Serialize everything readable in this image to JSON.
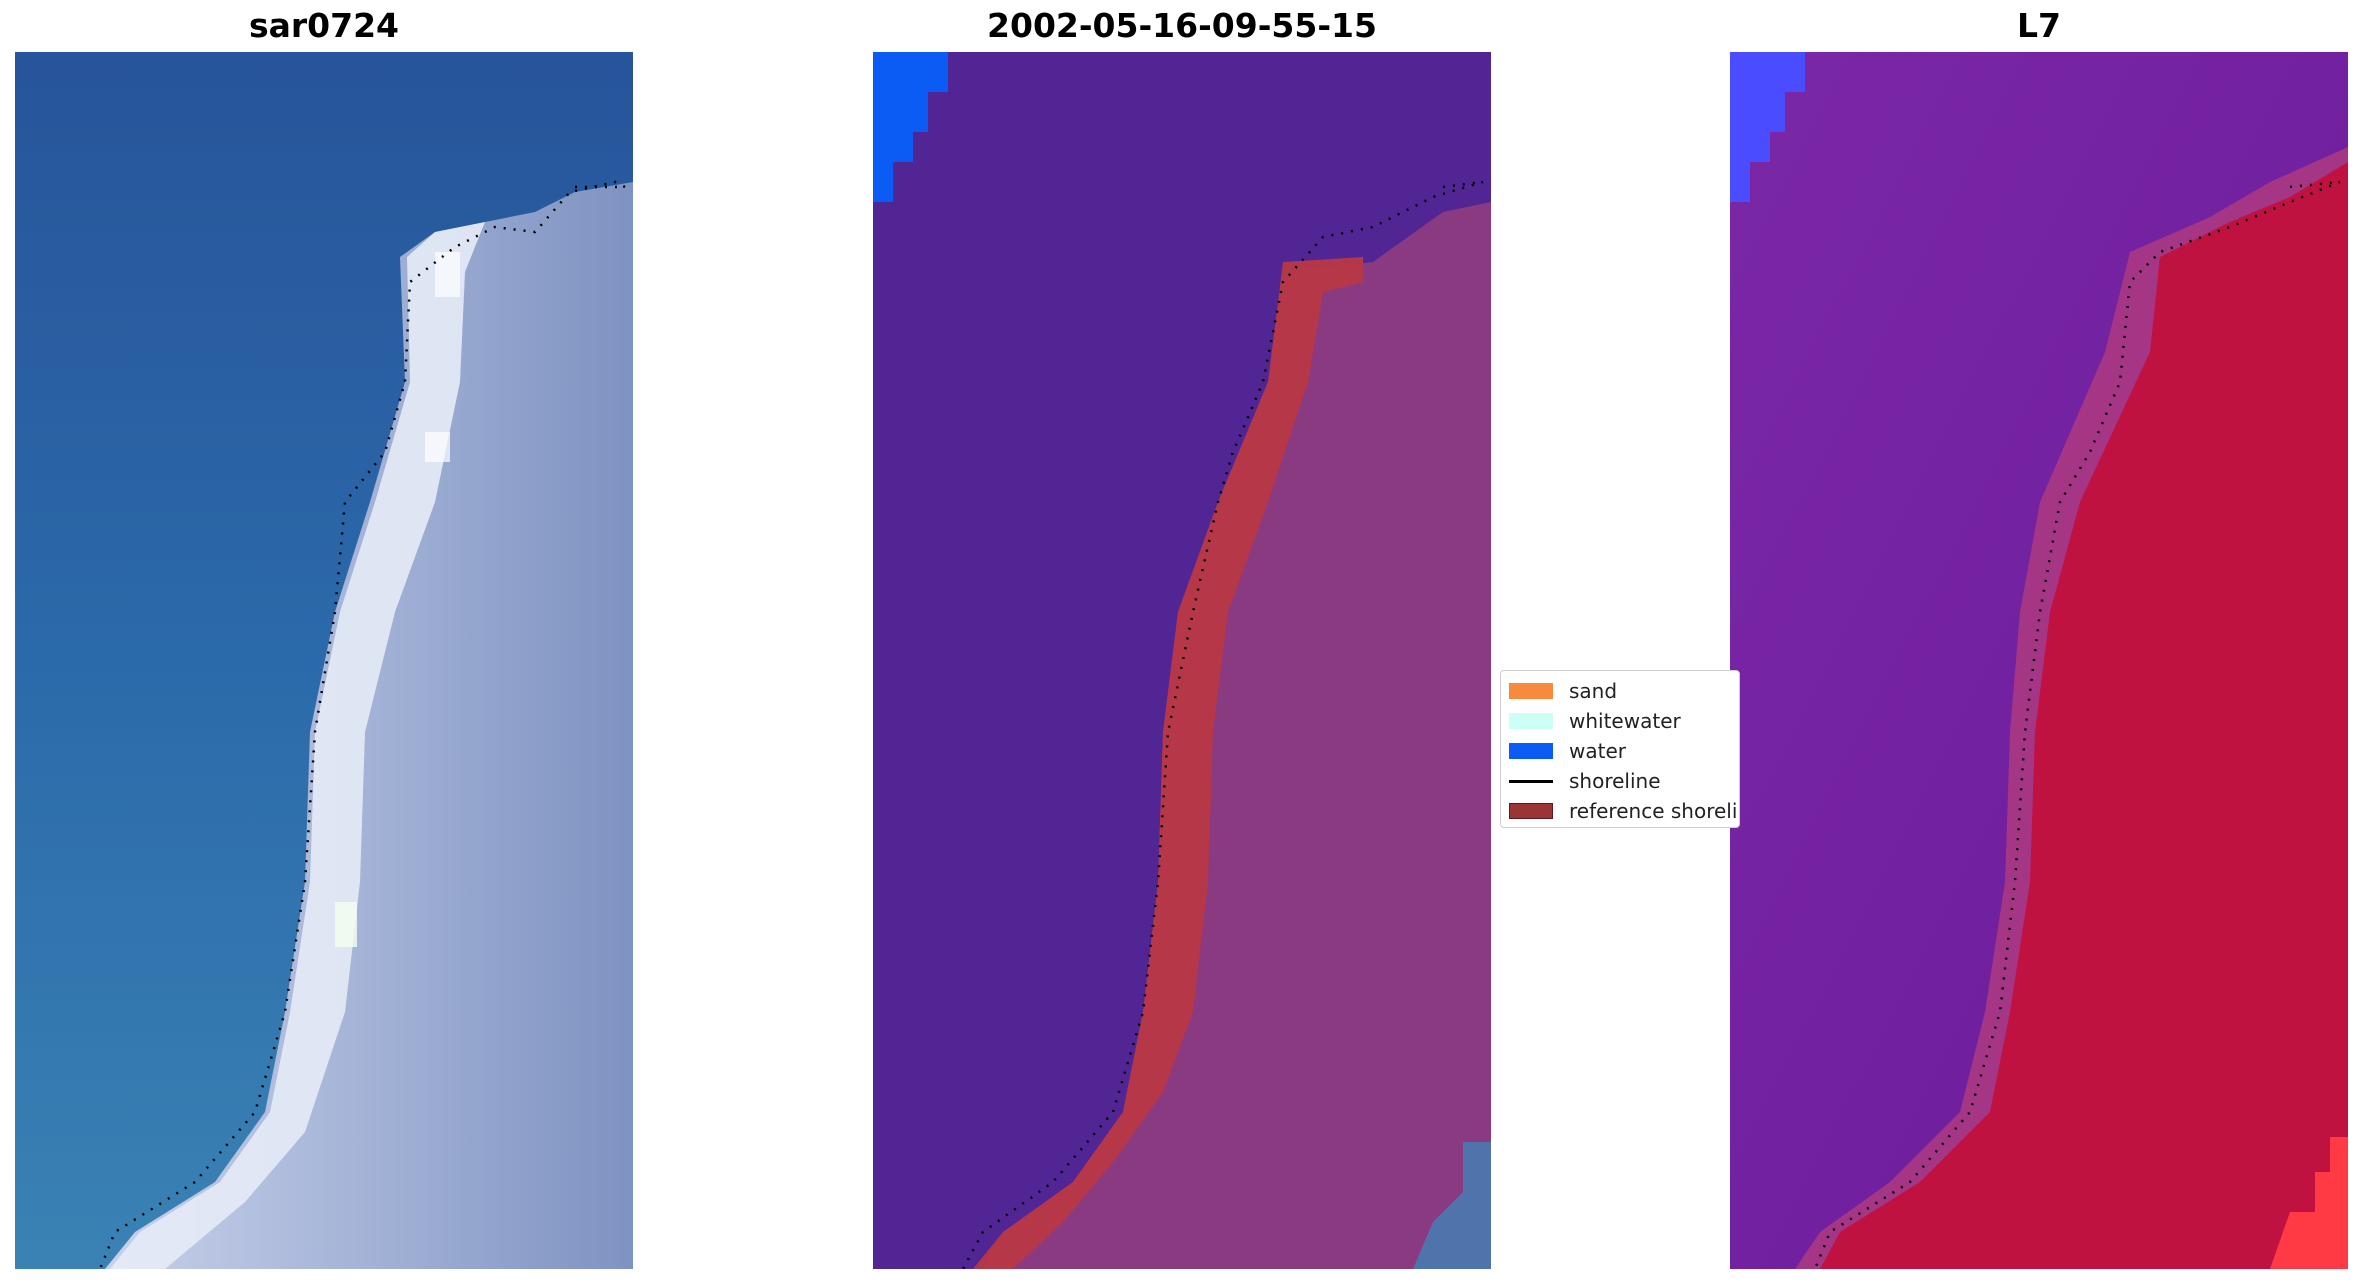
{
  "panels": [
    {
      "title": "sar0724",
      "type": "rgb-image"
    },
    {
      "title": "2002-05-16-09-55-15",
      "type": "classified-image"
    },
    {
      "title": "L7",
      "type": "water-index-image"
    }
  ],
  "legend": {
    "items": [
      {
        "label": "sand",
        "color": "#f78a3c",
        "kind": "patch"
      },
      {
        "label": "whitewater",
        "color": "#ccfff6",
        "kind": "patch"
      },
      {
        "label": "water",
        "color": "#0a5cf5",
        "kind": "patch"
      },
      {
        "label": "shoreline",
        "color": "#000000",
        "kind": "line"
      },
      {
        "label": "reference shoreline",
        "color": "#9b3535",
        "kind": "patch"
      }
    ]
  },
  "colors": {
    "water_rgb": "#2a66a8",
    "whitewater_rgb": "#dde4f0",
    "land_rgb": "#8f9fc8",
    "class_water": "#522595",
    "class_land": "#8a3a80",
    "class_reference": "#b83844",
    "class_blue": "#0a5cf5",
    "index_water": "#6a1fa0",
    "index_land": "#c01240",
    "index_blue": "#4a4cff",
    "index_bright": "#ff3a44"
  }
}
